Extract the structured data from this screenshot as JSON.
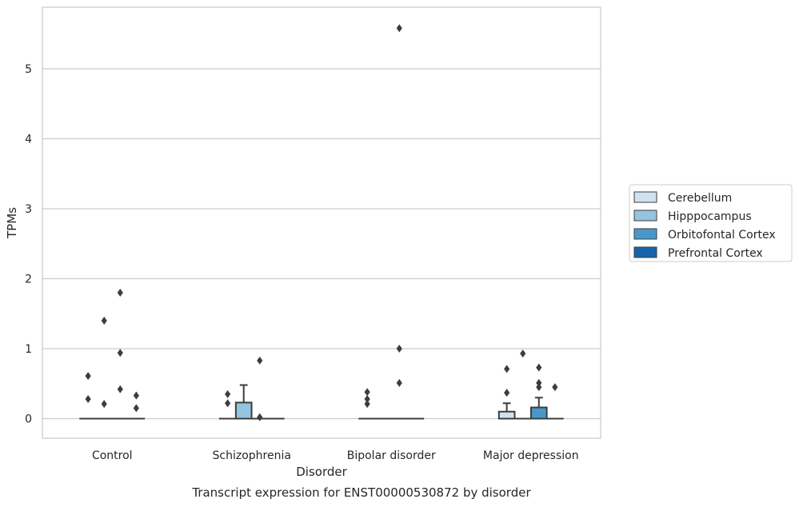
{
  "chart_data": {
    "type": "box",
    "title": "Transcript expression for ENST00000530872 by disorder",
    "xlabel": "Disorder",
    "ylabel": "TPMs",
    "ylim": [
      -0.28,
      5.88
    ],
    "yticks": [
      0,
      1,
      2,
      3,
      4,
      5
    ],
    "grid": "horizontal",
    "legend_position": "right",
    "categories": [
      "Control",
      "Schizophrenia",
      "Bipolar disorder",
      "Major depression"
    ],
    "series": [
      {
        "name": "Cerebellum",
        "color": "#d0e1f2",
        "boxes": [
          {
            "q1": 0,
            "median": 0,
            "q3": 0,
            "whisker_low": 0,
            "whisker_high": 0,
            "outliers": [
              0.61,
              0.28
            ]
          },
          {
            "q1": 0,
            "median": 0,
            "q3": 0,
            "whisker_low": 0,
            "whisker_high": 0,
            "outliers": [
              0.35,
              0.22
            ]
          },
          {
            "q1": 0,
            "median": 0,
            "q3": 0,
            "whisker_low": 0,
            "whisker_high": 0,
            "outliers": [
              0.38,
              0.28,
              0.21
            ]
          },
          {
            "q1": 0,
            "median": 0,
            "q3": 0.1,
            "whisker_low": 0,
            "whisker_high": 0.22,
            "outliers": [
              0.71,
              0.37
            ]
          }
        ]
      },
      {
        "name": "Hipppocampus",
        "color": "#94c4df",
        "boxes": [
          {
            "q1": 0,
            "median": 0,
            "q3": 0,
            "whisker_low": 0,
            "whisker_high": 0,
            "outliers": [
              1.4,
              0.21
            ]
          },
          {
            "q1": 0,
            "median": 0,
            "q3": 0.23,
            "whisker_low": 0,
            "whisker_high": 0.48,
            "outliers": []
          },
          {
            "q1": 0,
            "median": 0,
            "q3": 0,
            "whisker_low": 0,
            "whisker_high": 0,
            "outliers": []
          },
          {
            "q1": 0,
            "median": 0,
            "q3": 0,
            "whisker_low": 0,
            "whisker_high": 0,
            "outliers": [
              0.93
            ]
          }
        ]
      },
      {
        "name": "Orbitofontal Cortex",
        "color": "#4a98c9",
        "boxes": [
          {
            "q1": 0,
            "median": 0,
            "q3": 0,
            "whisker_low": 0,
            "whisker_high": 0,
            "outliers": [
              1.8,
              0.94,
              0.42
            ]
          },
          {
            "q1": 0,
            "median": 0,
            "q3": 0,
            "whisker_low": 0,
            "whisker_high": 0,
            "outliers": [
              0.83,
              0.02
            ]
          },
          {
            "q1": 0,
            "median": 0,
            "q3": 0,
            "whisker_low": 0,
            "whisker_high": 0,
            "outliers": [
              5.58,
              1.0,
              0.51
            ]
          },
          {
            "q1": 0,
            "median": 0,
            "q3": 0.16,
            "whisker_low": 0,
            "whisker_high": 0.3,
            "outliers": [
              0.73,
              0.51,
              0.45
            ]
          }
        ]
      },
      {
        "name": "Prefrontal Cortex",
        "color": "#1764ab",
        "boxes": [
          {
            "q1": 0,
            "median": 0,
            "q3": 0,
            "whisker_low": 0,
            "whisker_high": 0,
            "outliers": [
              0.33,
              0.15
            ]
          },
          {
            "q1": 0,
            "median": 0,
            "q3": 0,
            "whisker_low": 0,
            "whisker_high": 0,
            "outliers": []
          },
          {
            "q1": 0,
            "median": 0,
            "q3": 0,
            "whisker_low": 0,
            "whisker_high": 0,
            "outliers": []
          },
          {
            "q1": 0,
            "median": 0,
            "q3": 0,
            "whisker_low": 0,
            "whisker_high": 0,
            "outliers": [
              0.45
            ]
          }
        ]
      }
    ]
  }
}
